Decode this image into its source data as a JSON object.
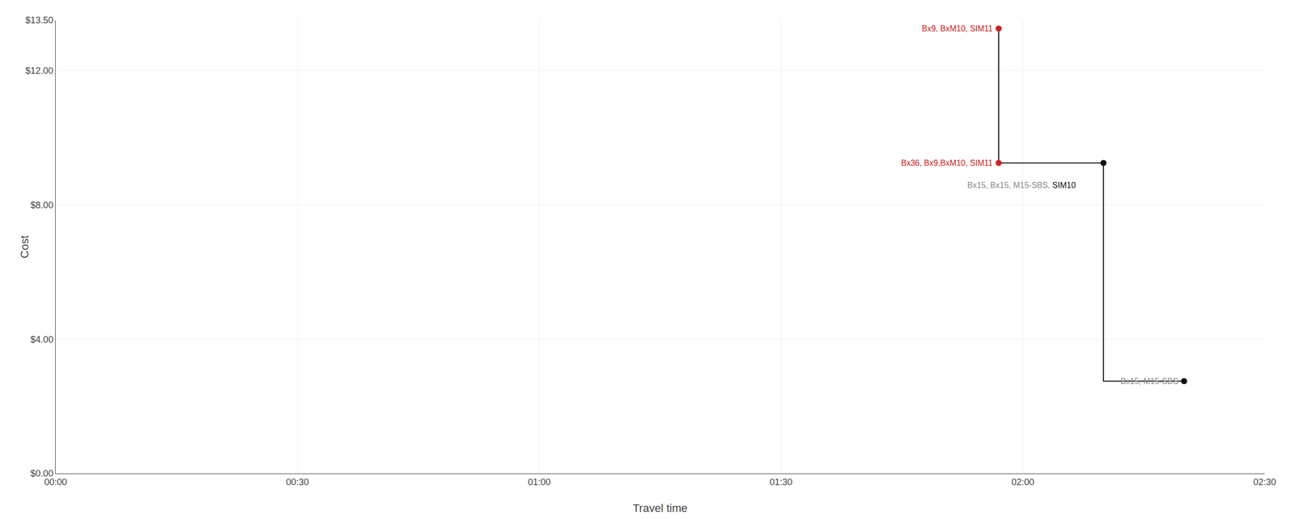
{
  "chart_data": {
    "type": "line",
    "xlabel": "Travel time",
    "ylabel": "Cost",
    "xlim": [
      0,
      150
    ],
    "ylim": [
      0,
      13.5
    ],
    "xticks": [
      {
        "value": 0,
        "label": "00:00"
      },
      {
        "value": 30,
        "label": "00:30"
      },
      {
        "value": 60,
        "label": "01:00"
      },
      {
        "value": 90,
        "label": "01:30"
      },
      {
        "value": 120,
        "label": "02:00"
      },
      {
        "value": 150,
        "label": "02:30"
      }
    ],
    "yticks": [
      {
        "value": 0,
        "label": "$0.00"
      },
      {
        "value": 4,
        "label": "$4.00"
      },
      {
        "value": 8,
        "label": "$8.00"
      },
      {
        "value": 12,
        "label": "$12.00"
      },
      {
        "value": 13.5,
        "label": "$13.50"
      }
    ],
    "grid": true,
    "series": [
      {
        "type": "line",
        "color": "#111111",
        "x": [
          117,
          117
        ],
        "values": [
          9.25,
          13.25
        ]
      },
      {
        "type": "line",
        "color": "#111111",
        "x": [
          117,
          130,
          130,
          140
        ],
        "values": [
          9.25,
          9.25,
          2.75,
          2.75
        ]
      },
      {
        "type": "scatter",
        "x": [
          117,
          117,
          130,
          140
        ],
        "values": [
          13.25,
          9.25,
          9.25,
          2.75
        ],
        "colors": [
          "#cc2222",
          "#cc2222",
          "#111111",
          "#111111"
        ]
      }
    ],
    "annotations": [
      {
        "x": 117,
        "y": 13.25,
        "align": "right",
        "parts": [
          {
            "text": "Bx9, BxM10, SIM11",
            "color": "#cc2222"
          }
        ]
      },
      {
        "x": 117,
        "y": 9.25,
        "align": "right",
        "parts": [
          {
            "text": "Bx36, Bx9,BxM10, SIM11",
            "color": "#cc2222"
          }
        ]
      },
      {
        "x": 113,
        "y": 8.75,
        "align": "left",
        "parts": [
          {
            "text": "Bx15, Bx15, M15-SBS, ",
            "color": "#888888"
          },
          {
            "text": "SIM10",
            "color": "#111111"
          }
        ]
      },
      {
        "x": 140,
        "y": 2.75,
        "align": "right",
        "parts": [
          {
            "text": "Bx15, M15-SBS",
            "color": "#888888"
          }
        ]
      }
    ]
  }
}
